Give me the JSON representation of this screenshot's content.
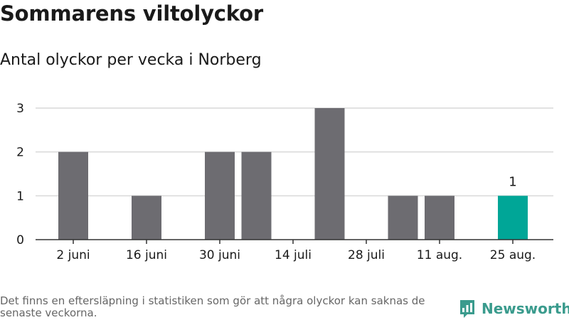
{
  "header": {
    "title": "Sommarens viltolyckor",
    "subtitle": "Antal olyckor per vecka i Norberg"
  },
  "footer": {
    "note": "Det finns en eftersläpning i statistiken som gör att några olyckor kan saknas de senaste veckorna.",
    "brand": "Newsworthy"
  },
  "colors": {
    "bar": "#6d6c71",
    "highlight": "#00a697",
    "brand": "#3a9b8d",
    "grid": "#d9d9d9"
  },
  "chart_data": {
    "type": "bar",
    "title": "Sommarens viltolyckor",
    "subtitle": "Antal olyckor per vecka i Norberg",
    "xlabel": "",
    "ylabel": "",
    "ylim": [
      0,
      3
    ],
    "yticks": [
      0,
      1,
      2,
      3
    ],
    "grid": true,
    "x_tick_labels": [
      "2 juni",
      "16 juni",
      "30 juni",
      "14 juli",
      "28 juli",
      "11 aug.",
      "25 aug."
    ],
    "series": [
      {
        "values": [
          2,
          0,
          1,
          0,
          2,
          2,
          0,
          3,
          0,
          1,
          1,
          0,
          1
        ]
      }
    ],
    "highlight_index": 12,
    "data_labels": [
      {
        "index": 12,
        "text": "1"
      }
    ]
  }
}
